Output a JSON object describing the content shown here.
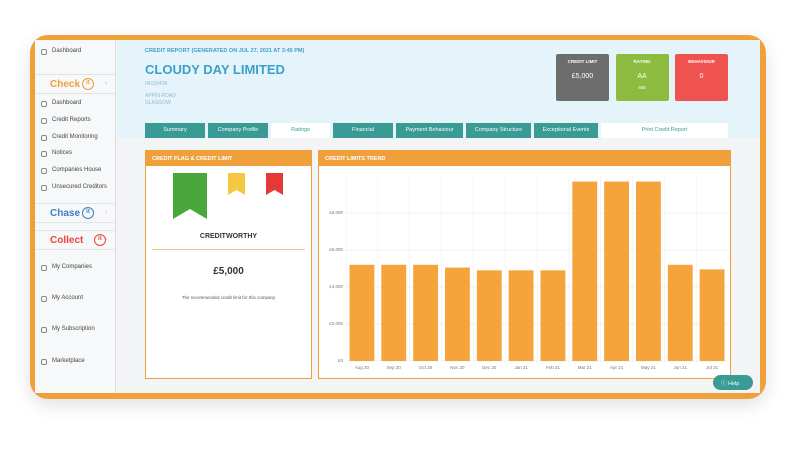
{
  "sidebar": {
    "items": [
      {
        "label": "Dashboard"
      },
      {
        "label": "Check",
        "badge": "it",
        "color": "#f0a03a"
      },
      {
        "label": "Dashboard"
      },
      {
        "label": "Credit Reports"
      },
      {
        "label": "Credit Monitoring"
      },
      {
        "label": "Notices"
      },
      {
        "label": "Companies House"
      },
      {
        "label": "Unsecured Creditors"
      },
      {
        "label": "Chase",
        "badge": "it",
        "color": "#3d7fc4"
      },
      {
        "label": "Collect",
        "badge": "it",
        "color": "#e8463a"
      },
      {
        "label": "My Companies"
      },
      {
        "label": "My Account"
      },
      {
        "label": "My Subscription"
      },
      {
        "label": "Marketplace"
      }
    ]
  },
  "header": {
    "subtitle": "CREDIT REPORT (GENERATED ON JUL 27, 2021 AT 3:45 PM)",
    "company": "CLOUDY DAY LIMITED",
    "number": "04150438",
    "address": [
      "APPIN ROAD",
      "GLASGOW"
    ]
  },
  "summary_cards": [
    {
      "title": "CREDIT LIMIT",
      "value": "£5,000"
    },
    {
      "title": "RATING",
      "value": "AA",
      "sub": "485"
    },
    {
      "title": "BEHAVIOUR",
      "value": "0"
    }
  ],
  "tabs": {
    "items": [
      "Summary",
      "Company Profile",
      "Ratings",
      "Financial",
      "Payment Behaviour",
      "Company Structure",
      "Exceptional Events"
    ],
    "active": 2,
    "print": "Print Credit Report"
  },
  "credit_flag": {
    "title": "CREDIT FLAG & CREDIT LIMIT",
    "status": "CREDITWORTHY",
    "limit": "£5,000",
    "note": "The recommended credit limit for this company"
  },
  "help": "Help",
  "chart_data": {
    "type": "bar",
    "title": "CREDIT LIMITS TREND",
    "categories": [
      "Aug 20",
      "Sep 20",
      "Oct 20",
      "Nov 20",
      "Dec 20",
      "Jan 21",
      "Feb 21",
      "Mar 21",
      "Apr 21",
      "May 21",
      "Jun 21",
      "Jul 21"
    ],
    "values": [
      5200,
      5200,
      5200,
      5050,
      4900,
      4900,
      4900,
      9700,
      9700,
      9700,
      5200,
      4950
    ],
    "color": "#f5a33b",
    "ylim": [
      0,
      10000
    ],
    "yticks": [
      {
        "value": 0,
        "label": "£0"
      },
      {
        "value": 2000,
        "label": "£2,000"
      },
      {
        "value": 4000,
        "label": "£4,000"
      },
      {
        "value": 6000,
        "label": "£6,000"
      },
      {
        "value": 8000,
        "label": "£8,000"
      }
    ],
    "grid": true
  }
}
